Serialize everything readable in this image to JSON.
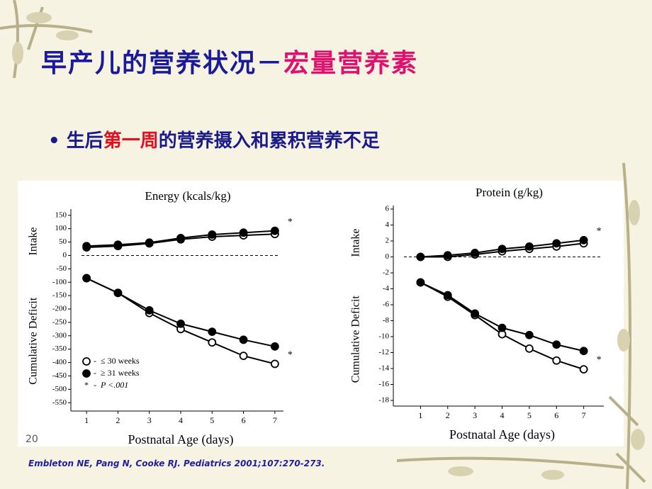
{
  "title": {
    "main": "早产儿的营养状况",
    "dash": "－",
    "highlight": "宏量营养素"
  },
  "bullet": {
    "pre": "生后",
    "highlight": "第一周",
    "post": "的营养摄入和累积营养不足"
  },
  "page_number": "20",
  "citation": "Embleton NE, Pang N, Cooke RJ. Pediatrics 2001;107:270-273.",
  "chart_data": [
    {
      "type": "line",
      "title": "Energy (kcals/kg)",
      "xlabel": "Postnatal Age (days)",
      "ylabel_top": "Intake",
      "ylabel_bottom": "Cumulative Deficit",
      "x": [
        1,
        2,
        3,
        4,
        5,
        6,
        7
      ],
      "xlim": [
        0.5,
        7.5
      ],
      "xticks": [
        1,
        2,
        3,
        4,
        5,
        6,
        7
      ],
      "ylim": [
        -560,
        160
      ],
      "yticks": [
        150,
        100,
        50,
        0,
        -50,
        -100,
        -150,
        -200,
        -250,
        -300,
        -350,
        -400,
        -450,
        -500,
        -550
      ],
      "significance_marker": "*",
      "legend": "lower left",
      "legend_note": {
        "symbol": "*",
        "text": "P <.001"
      },
      "series": [
        {
          "name": "≤ 30 weeks",
          "color": "#000000",
          "marker": "open",
          "intake": [
            30,
            35,
            45,
            60,
            70,
            75,
            80
          ],
          "deficit": [
            -85,
            -140,
            -215,
            -275,
            -325,
            -375,
            -405
          ]
        },
        {
          "name": "≥ 31 weeks",
          "color": "#000000",
          "marker": "filled",
          "intake": [
            35,
            40,
            48,
            65,
            78,
            85,
            92
          ],
          "deficit": [
            -85,
            -140,
            -205,
            -255,
            -285,
            -315,
            -340
          ]
        }
      ]
    },
    {
      "type": "line",
      "title": "Protein (g/kg)",
      "xlabel": "Postnatal Age (days)",
      "ylabel_top": "Intake",
      "ylabel_bottom": "Cumulative Deficit",
      "x": [
        1,
        2,
        3,
        4,
        5,
        6,
        7
      ],
      "xlim": [
        0,
        8
      ],
      "xticks": [
        1,
        2,
        3,
        4,
        5,
        6,
        7
      ],
      "ylim": [
        -18,
        6
      ],
      "yticks": [
        6,
        4,
        2,
        0,
        -2,
        -4,
        -6,
        -8,
        -10,
        -12,
        -14,
        -16,
        -18
      ],
      "significance_marker": "*",
      "series": [
        {
          "name": "≤ 30 weeks",
          "color": "#000000",
          "marker": "open",
          "intake": [
            0,
            0,
            0.3,
            0.7,
            1.0,
            1.3,
            1.7
          ],
          "deficit": [
            -3.2,
            -5,
            -7.3,
            -9.7,
            -11.5,
            -13,
            -14.1
          ]
        },
        {
          "name": "≥ 31 weeks",
          "color": "#000000",
          "marker": "filled",
          "intake": [
            0,
            0.2,
            0.5,
            1.0,
            1.3,
            1.7,
            2.1
          ],
          "deficit": [
            -3.2,
            -4.8,
            -7.1,
            -8.9,
            -9.8,
            -11,
            -11.8
          ]
        }
      ]
    }
  ]
}
